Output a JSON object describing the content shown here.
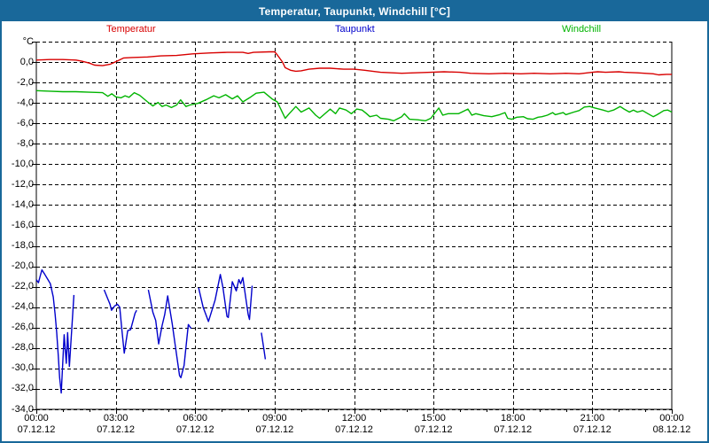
{
  "window": {
    "title": "Temperatur, Taupunkt, Windchill [°C]"
  },
  "colors": {
    "titlebar_bg": "#19689a",
    "titlebar_text": "#ffffff",
    "frame": "#19689a",
    "background": "#ffffff",
    "grid": "#000000",
    "temperatur": "#d80000",
    "taupunkt": "#0000cc",
    "windchill": "#00b400"
  },
  "legend": [
    {
      "label": "Temperatur",
      "color": "#d80000"
    },
    {
      "label": "Taupunkt",
      "color": "#0000cc"
    },
    {
      "label": "Windchill",
      "color": "#00b400"
    }
  ],
  "chart_data": {
    "type": "line",
    "title": "Temperatur, Taupunkt, Windchill [°C]",
    "xlabel": "",
    "ylabel": "°C",
    "x_unit": "hours since 00:00 07.12.12",
    "xlim": [
      0,
      24
    ],
    "ylim": [
      -34,
      2
    ],
    "y_tick_step": 2,
    "grid": "dashed",
    "legend_position": "top",
    "y_tick_labels": [
      "°C",
      "0,0",
      "-2,0",
      "-4,0",
      "-6,0",
      "-8,0",
      "-10,0",
      "-12,0",
      "-14,0",
      "-16,0",
      "-18,0",
      "-20,0",
      "-22,0",
      "-24,0",
      "-26,0",
      "-28,0",
      "-30,0",
      "-32,0",
      "-34,0"
    ],
    "x_ticks": [
      {
        "hour": 0,
        "time": "00:00",
        "date": "07.12.12"
      },
      {
        "hour": 3,
        "time": "03:00",
        "date": "07.12.12"
      },
      {
        "hour": 6,
        "time": "06:00",
        "date": "07.12.12"
      },
      {
        "hour": 9,
        "time": "09:00",
        "date": "07.12.12"
      },
      {
        "hour": 12,
        "time": "12:00",
        "date": "07.12.12"
      },
      {
        "hour": 15,
        "time": "15:00",
        "date": "07.12.12"
      },
      {
        "hour": 18,
        "time": "18:00",
        "date": "07.12.12"
      },
      {
        "hour": 21,
        "time": "21:00",
        "date": "07.12.12"
      },
      {
        "hour": 24,
        "time": "00:00",
        "date": "08.12.12"
      }
    ],
    "series": [
      {
        "name": "Temperatur",
        "color": "#d80000",
        "segments": [
          [
            [
              0,
              0.2
            ],
            [
              0.5,
              0.25
            ],
            [
              1,
              0.25
            ],
            [
              1.5,
              0.2
            ],
            [
              1.7,
              0.1
            ],
            [
              2,
              -0.1
            ],
            [
              2.2,
              -0.3
            ],
            [
              2.5,
              -0.35
            ],
            [
              2.8,
              -0.2
            ],
            [
              3.1,
              0.15
            ],
            [
              3.3,
              0.4
            ],
            [
              3.6,
              0.45
            ],
            [
              4.2,
              0.5
            ],
            [
              4.7,
              0.6
            ],
            [
              5.3,
              0.65
            ],
            [
              5.9,
              0.8
            ],
            [
              6.2,
              0.85
            ],
            [
              6.6,
              0.9
            ],
            [
              7.2,
              0.95
            ],
            [
              7.8,
              0.95
            ],
            [
              8,
              0.85
            ],
            [
              8.2,
              0.95
            ],
            [
              8.8,
              1
            ],
            [
              9,
              1
            ],
            [
              9.1,
              0.7
            ],
            [
              9.3,
              0
            ],
            [
              9.4,
              -0.55
            ],
            [
              9.6,
              -0.8
            ],
            [
              9.8,
              -0.9
            ],
            [
              10,
              -0.85
            ],
            [
              10.3,
              -0.7
            ],
            [
              10.7,
              -0.6
            ],
            [
              11.1,
              -0.6
            ],
            [
              11.6,
              -0.7
            ],
            [
              12,
              -0.7
            ],
            [
              12.4,
              -0.8
            ],
            [
              12.7,
              -0.9
            ],
            [
              13,
              -1
            ],
            [
              13.8,
              -1.1
            ],
            [
              14.9,
              -1
            ],
            [
              15.4,
              -0.95
            ],
            [
              16,
              -1
            ],
            [
              16.4,
              -1.1
            ],
            [
              17.1,
              -1.15
            ],
            [
              17.7,
              -1.1
            ],
            [
              18.3,
              -1.15
            ],
            [
              18.8,
              -1.1
            ],
            [
              19.4,
              -1.15
            ],
            [
              20,
              -1.1
            ],
            [
              20.5,
              -1.15
            ],
            [
              21,
              -1
            ],
            [
              21.2,
              -0.95
            ],
            [
              21.5,
              -1
            ],
            [
              22,
              -0.95
            ],
            [
              22.2,
              -1
            ],
            [
              22.7,
              -1.05
            ],
            [
              23.3,
              -1.15
            ],
            [
              23.5,
              -1.25
            ],
            [
              23.8,
              -1.2
            ],
            [
              24,
              -1.2
            ]
          ]
        ]
      },
      {
        "name": "Taupunkt",
        "color": "#0000cc",
        "segments": [
          [
            [
              0,
              -21.3
            ],
            [
              0.08,
              -21.6
            ],
            [
              0.15,
              -20.9
            ],
            [
              0.21,
              -20.35
            ],
            [
              0.32,
              -20.8
            ],
            [
              0.44,
              -21.3
            ],
            [
              0.53,
              -21.7
            ],
            [
              0.64,
              -23
            ],
            [
              0.71,
              -24.7
            ],
            [
              0.77,
              -26.5
            ],
            [
              0.83,
              -28.8
            ],
            [
              0.88,
              -30.9
            ],
            [
              0.94,
              -32.4
            ],
            [
              1.05,
              -26.7
            ],
            [
              1.13,
              -29.5
            ],
            [
              1.18,
              -26.5
            ],
            [
              1.25,
              -29.8
            ],
            [
              1.42,
              -22.8
            ]
          ],
          [
            [
              2.56,
              -22.3
            ],
            [
              2.7,
              -23.2
            ],
            [
              2.78,
              -23.7
            ],
            [
              2.84,
              -24.3
            ],
            [
              2.95,
              -23.9
            ],
            [
              3.06,
              -23.7
            ],
            [
              3.15,
              -24
            ],
            [
              3.23,
              -26.2
            ],
            [
              3.32,
              -28.5
            ],
            [
              3.45,
              -26.3
            ],
            [
              3.56,
              -26.2
            ],
            [
              3.73,
              -24.6
            ],
            [
              3.79,
              -24.3
            ]
          ],
          [
            [
              4.23,
              -22.3
            ],
            [
              4.4,
              -24.5
            ],
            [
              4.51,
              -25.3
            ],
            [
              4.62,
              -27.6
            ],
            [
              4.75,
              -25.8
            ],
            [
              4.85,
              -24.7
            ],
            [
              4.96,
              -22.9
            ],
            [
              5.13,
              -25.6
            ],
            [
              5.24,
              -27.6
            ],
            [
              5.41,
              -30.7
            ],
            [
              5.46,
              -30.9
            ],
            [
              5.58,
              -29.7
            ],
            [
              5.74,
              -25.7
            ],
            [
              5.85,
              -26.1
            ]
          ],
          [
            [
              6.13,
              -22.1
            ],
            [
              6.3,
              -24
            ],
            [
              6.4,
              -24.7
            ],
            [
              6.5,
              -25.4
            ],
            [
              6.75,
              -23.3
            ],
            [
              6.95,
              -20.8
            ],
            [
              7.05,
              -22.1
            ],
            [
              7.2,
              -24.9
            ],
            [
              7.25,
              -25
            ],
            [
              7.4,
              -21.5
            ],
            [
              7.55,
              -22.4
            ],
            [
              7.65,
              -21.3
            ],
            [
              7.72,
              -21.7
            ],
            [
              7.8,
              -21.1
            ],
            [
              8,
              -24.7
            ],
            [
              8.05,
              -25.2
            ],
            [
              8.15,
              -21.9
            ]
          ],
          [
            [
              8.5,
              -26.5
            ],
            [
              8.6,
              -28.2
            ],
            [
              8.65,
              -29.1
            ]
          ]
        ]
      },
      {
        "name": "Windchill",
        "color": "#00b400",
        "segments": [
          [
            [
              0,
              -2.8
            ],
            [
              0.5,
              -2.85
            ],
            [
              1,
              -2.9
            ],
            [
              1.5,
              -2.9
            ],
            [
              2,
              -2.95
            ],
            [
              2.5,
              -3
            ],
            [
              2.7,
              -3.35
            ],
            [
              2.85,
              -3.1
            ],
            [
              3,
              -3.4
            ],
            [
              3.2,
              -3.5
            ],
            [
              3.35,
              -3.3
            ],
            [
              3.5,
              -3.45
            ],
            [
              3.7,
              -3
            ],
            [
              3.9,
              -3.25
            ],
            [
              4.2,
              -3.9
            ],
            [
              4.4,
              -4.3
            ],
            [
              4.6,
              -3.95
            ],
            [
              4.75,
              -4.35
            ],
            [
              4.9,
              -4.2
            ],
            [
              5.1,
              -4.45
            ],
            [
              5.3,
              -4.2
            ],
            [
              5.45,
              -3.7
            ],
            [
              5.65,
              -4.35
            ],
            [
              5.8,
              -4.2
            ],
            [
              6.1,
              -4.05
            ],
            [
              6.4,
              -3.7
            ],
            [
              6.7,
              -3.3
            ],
            [
              6.9,
              -3.5
            ],
            [
              7.15,
              -3.2
            ],
            [
              7.4,
              -3.6
            ],
            [
              7.6,
              -3.3
            ],
            [
              7.8,
              -3.9
            ],
            [
              8.05,
              -3.5
            ],
            [
              8.3,
              -3.05
            ],
            [
              8.6,
              -2.95
            ],
            [
              8.9,
              -3.6
            ],
            [
              9.1,
              -3.9
            ],
            [
              9.4,
              -5.5
            ],
            [
              9.55,
              -5.05
            ],
            [
              9.8,
              -4.35
            ],
            [
              10,
              -4.9
            ],
            [
              10.3,
              -4.5
            ],
            [
              10.55,
              -5.2
            ],
            [
              10.7,
              -5.5
            ],
            [
              11.1,
              -4.6
            ],
            [
              11.3,
              -5.05
            ],
            [
              11.45,
              -4.5
            ],
            [
              11.7,
              -4.7
            ],
            [
              11.9,
              -5.05
            ],
            [
              12.1,
              -4.6
            ],
            [
              12.3,
              -4.7
            ],
            [
              12.45,
              -5
            ],
            [
              12.6,
              -5.35
            ],
            [
              12.85,
              -5.2
            ],
            [
              13,
              -5.5
            ],
            [
              13.3,
              -5.6
            ],
            [
              13.5,
              -5.75
            ],
            [
              13.8,
              -5.35
            ],
            [
              13.9,
              -5.05
            ],
            [
              14.1,
              -5.6
            ],
            [
              14.4,
              -5.65
            ],
            [
              14.7,
              -5.75
            ],
            [
              14.9,
              -5.5
            ],
            [
              15.2,
              -4.5
            ],
            [
              15.35,
              -5.2
            ],
            [
              15.55,
              -5.05
            ],
            [
              15.95,
              -5.05
            ],
            [
              16.3,
              -4.6
            ],
            [
              16.45,
              -5.2
            ],
            [
              16.6,
              -5.05
            ],
            [
              16.9,
              -5.25
            ],
            [
              17.2,
              -5.35
            ],
            [
              17.5,
              -5.15
            ],
            [
              17.7,
              -4.95
            ],
            [
              17.8,
              -5.5
            ],
            [
              17.95,
              -5.6
            ],
            [
              18.15,
              -5.4
            ],
            [
              18.4,
              -5.35
            ],
            [
              18.55,
              -5.55
            ],
            [
              18.75,
              -5.6
            ],
            [
              18.95,
              -5.4
            ],
            [
              19.1,
              -5.35
            ],
            [
              19.3,
              -5.2
            ],
            [
              19.5,
              -4.95
            ],
            [
              19.6,
              -5.15
            ],
            [
              19.9,
              -4.95
            ],
            [
              20,
              -5.15
            ],
            [
              20.3,
              -4.9
            ],
            [
              20.5,
              -4.75
            ],
            [
              20.7,
              -4.4
            ],
            [
              20.9,
              -4.35
            ],
            [
              21.1,
              -4.5
            ],
            [
              21.4,
              -4.7
            ],
            [
              21.6,
              -4.85
            ],
            [
              21.8,
              -4.7
            ],
            [
              22.05,
              -4.35
            ],
            [
              22.2,
              -4.6
            ],
            [
              22.4,
              -4.9
            ],
            [
              22.55,
              -4.7
            ],
            [
              22.7,
              -4.9
            ],
            [
              22.9,
              -4.75
            ],
            [
              23.1,
              -5.05
            ],
            [
              23.3,
              -5.35
            ],
            [
              23.45,
              -5.15
            ],
            [
              23.7,
              -4.75
            ],
            [
              23.85,
              -4.7
            ],
            [
              24,
              -4.9
            ]
          ]
        ]
      }
    ]
  }
}
